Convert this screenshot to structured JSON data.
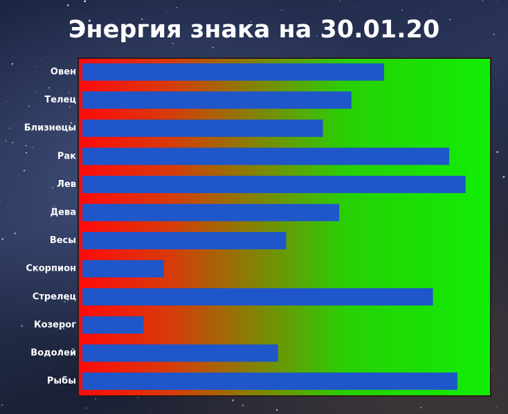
{
  "chart_data": {
    "type": "hbar",
    "title": "Энергия знака на 30.01.20",
    "categories": [
      "Овен",
      "Телец",
      "Близнецы",
      "Рак",
      "Лев",
      "Дева",
      "Весы",
      "Скорпион",
      "Стрелец",
      "Козерог",
      "Водолей",
      "Рыбы"
    ],
    "values": [
      74,
      66,
      59,
      90,
      94,
      63,
      50,
      20,
      86,
      15,
      48,
      92
    ],
    "color": "#1f56c9",
    "xlim": [
      0,
      100
    ]
  }
}
